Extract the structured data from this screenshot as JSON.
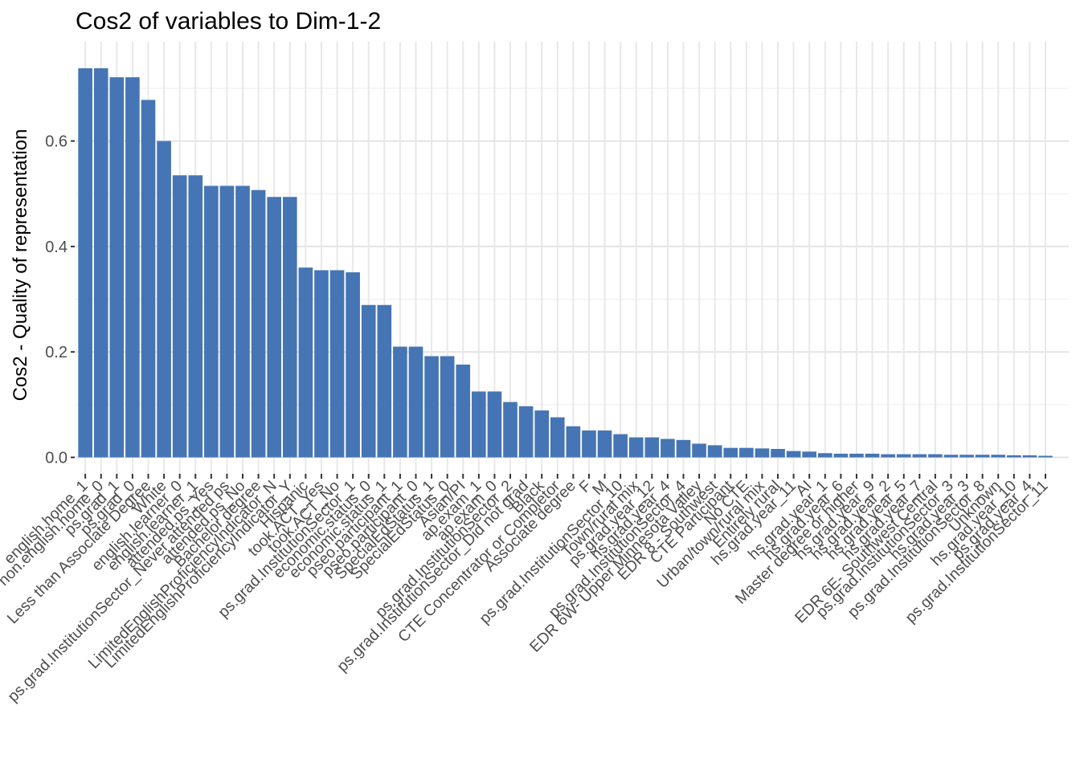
{
  "chart_data": {
    "type": "bar",
    "title": "Cos2 of variables to Dim-1-2",
    "xlabel": "",
    "ylabel": "Cos2 - Quality of representation",
    "ylim": [
      0,
      0.75
    ],
    "y_ticks": [
      0.0,
      0.2,
      0.4,
      0.6
    ],
    "y_tick_labels": [
      "0.0",
      "0.2",
      "0.4",
      "0.6"
    ],
    "grid": true,
    "legend": "none",
    "bar_color": "#4575b4",
    "categories": [
      "english.home_1",
      "non.english.home_0",
      "ps.grad_1",
      "ps.grad_0",
      "Less than Associate Degree",
      "White",
      "english.learner_0",
      "english.learner_1",
      "attended.ps_Yes",
      "ps.grad.InstitutionSector_Never attended ps",
      "attended.ps_No",
      "Bachelor degree",
      "LimitedEnglishProficiencyIndicator_N",
      "LimitedEnglishProficiencyIndicator_Y",
      "Hispanic",
      "took.ACT_Yes",
      "took.ACT_No",
      "ps.grad.InstitutionSector_1",
      "economic.status_0",
      "economic.status_1",
      "pseo.participant_1",
      "pseo.participant_0",
      "SpecialEdStatus_1",
      "SpecialEdStatus_0",
      "Asian/PI",
      "ap.exam_1",
      "ap.exam_0",
      "ps.grad.InstitutionSector_2",
      "ps.grad.InstitutionSector_Did not grad",
      "Black",
      "CTE Concentrator or Completor",
      "Associate degree",
      "F",
      "M",
      "ps.grad.InstitutionSector_10",
      "Town/rural mix",
      "ps.grad.year_12",
      "hs.grad.year_4",
      "ps.grad.InstitutionSector_4",
      "EDR 6W- Upper Minnesota Valley",
      "EDR 8 - Southwest",
      "CTE Participant",
      "No CTE",
      "Urban/town/rural mix",
      "Entirely rural",
      "hs.grad.year_11",
      "AI",
      "hs.grad.year_1",
      "hs.grad.year_6",
      "Master degree or higher",
      "hs.grad.year_9",
      "hs.grad.year_2",
      "hs.grad.year_5",
      "hs.grad.year_7",
      "EDR 6E- Southwest Central",
      "ps.grad.InstitutionSector_3",
      "hs.grad.year_3",
      "ps.grad.InstitutionSector_8",
      "Unknown",
      "hs.grad.year_10",
      "ps.grad.year_4",
      "ps.grad.InstitutionSector_11"
    ],
    "values": [
      0.738,
      0.738,
      0.721,
      0.721,
      0.678,
      0.6,
      0.535,
      0.535,
      0.515,
      0.515,
      0.515,
      0.507,
      0.494,
      0.494,
      0.36,
      0.355,
      0.355,
      0.351,
      0.289,
      0.289,
      0.21,
      0.21,
      0.192,
      0.192,
      0.176,
      0.125,
      0.125,
      0.105,
      0.097,
      0.089,
      0.076,
      0.059,
      0.051,
      0.051,
      0.044,
      0.038,
      0.038,
      0.035,
      0.033,
      0.026,
      0.023,
      0.018,
      0.018,
      0.017,
      0.016,
      0.012,
      0.011,
      0.008,
      0.007,
      0.007,
      0.007,
      0.006,
      0.006,
      0.006,
      0.006,
      0.005,
      0.005,
      0.005,
      0.005,
      0.004,
      0.004,
      0.003
    ]
  }
}
